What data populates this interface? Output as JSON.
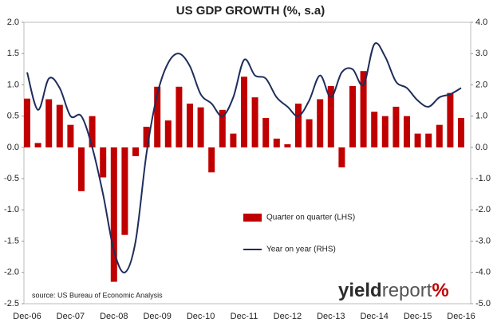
{
  "chart_data": {
    "type": "bar_line",
    "title": "US GDP GROWTH (%, s.a)",
    "source": "source: US Bureau of Economic Analysis",
    "brand": [
      "yield",
      "report",
      "%"
    ],
    "categories": [
      "Dec-06",
      null,
      null,
      null,
      "Dec-07",
      null,
      null,
      null,
      "Dec-08",
      null,
      null,
      null,
      "Dec-09",
      null,
      null,
      null,
      "Dec-10",
      null,
      null,
      null,
      "Dec-11",
      null,
      null,
      null,
      "Dec-12",
      null,
      null,
      null,
      "Dec-13",
      null,
      null,
      null,
      "Dec-14",
      null,
      null,
      null,
      "Dec-15",
      null,
      null,
      null,
      "Dec-16"
    ],
    "series": [
      {
        "name": "Quarter on quarter (LHS)",
        "color": "#c00000",
        "type": "bar",
        "values": [
          0.78,
          0.07,
          0.77,
          0.68,
          0.36,
          -0.7,
          0.5,
          -0.48,
          -2.15,
          -1.4,
          -0.14,
          0.33,
          0.97,
          0.43,
          0.97,
          0.7,
          0.64,
          -0.4,
          0.6,
          0.22,
          1.13,
          0.8,
          0.47,
          0.14,
          0.05,
          0.7,
          0.45,
          0.77,
          0.98,
          -0.32,
          0.98,
          1.22,
          0.57,
          0.5,
          0.65,
          0.5,
          0.22,
          0.22,
          0.36,
          0.87,
          0.47
        ]
      },
      {
        "name": "Year on year (RHS)",
        "color": "#1f2d5c",
        "type": "line",
        "axis": "y2",
        "values": [
          2.4,
          1.2,
          2.2,
          1.9,
          1.0,
          1.0,
          0.0,
          -1.5,
          -3.3,
          -4.0,
          -3.0,
          -0.2,
          1.7,
          2.7,
          3.0,
          2.6,
          1.7,
          1.4,
          1.0,
          1.6,
          2.8,
          2.3,
          2.2,
          1.6,
          1.3,
          1.0,
          1.5,
          2.3,
          1.6,
          2.4,
          2.5,
          2.0,
          3.3,
          2.9,
          2.1,
          1.9,
          1.5,
          1.3,
          1.6,
          1.7,
          1.9
        ]
      }
    ],
    "ylim": [
      -2.5,
      2.0
    ],
    "yticks": [
      {
        "value": 2.0,
        "label": "2.0"
      },
      1.5,
      {
        "value": 1.0,
        "label": "1.0"
      },
      0.5,
      {
        "value": 0.0,
        "label": "0.0"
      },
      -0.5,
      {
        "value": -1.0,
        "label": "-1.0"
      },
      -1.5,
      {
        "value": -2.0,
        "label": "-2.0"
      },
      -2.5
    ],
    "y2lim": [
      -5.0,
      4.0
    ],
    "y2ticks": [
      {
        "value": 4.0,
        "label": "4.0"
      },
      {
        "value": 3.0,
        "label": "3.0"
      },
      {
        "value": 2.0,
        "label": "2.0"
      },
      {
        "value": 1.0,
        "label": "1.0"
      },
      {
        "value": 0.0,
        "label": "0.0"
      },
      {
        "value": -1.0,
        "label": "-1.0"
      },
      {
        "value": -2.0,
        "label": "-2.0"
      },
      {
        "value": -3.0,
        "label": "-3.0"
      },
      {
        "value": -4.0,
        "label": "-4.0"
      },
      {
        "value": -5.0,
        "label": "-5.0"
      }
    ],
    "grid": false
  }
}
